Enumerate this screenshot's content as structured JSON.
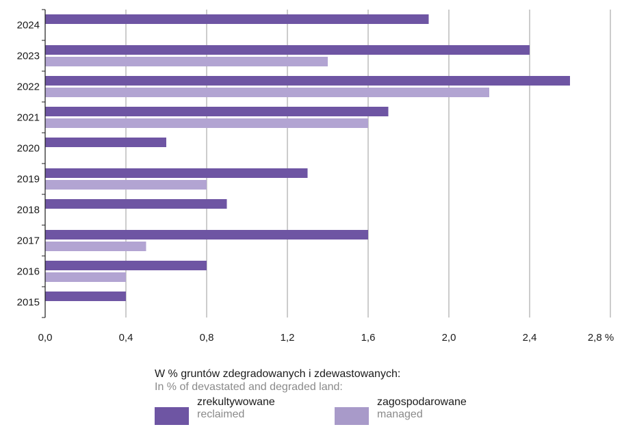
{
  "chart_data": {
    "type": "bar",
    "orientation": "horizontal",
    "categories": [
      "2024",
      "2023",
      "2022",
      "2021",
      "2020",
      "2019",
      "2018",
      "2017",
      "2016",
      "2015"
    ],
    "series": [
      {
        "name": "zrekultywowane",
        "name_en": "reclaimed",
        "color": "#6e55a3",
        "values": [
          1.9,
          2.4,
          2.6,
          1.7,
          0.6,
          1.3,
          0.9,
          1.6,
          0.8,
          0.4
        ]
      },
      {
        "name": "zagospodarowane",
        "name_en": "managed",
        "color": "#b2a4d2",
        "values": [
          null,
          1.4,
          2.2,
          1.6,
          null,
          0.8,
          null,
          0.5,
          0.4,
          null
        ]
      }
    ],
    "x_ticks": [
      "0,0",
      "0,4",
      "0,8",
      "1,2",
      "1,6",
      "2,0",
      "2,4",
      "2,8 %"
    ],
    "xlim": [
      0,
      2.8
    ],
    "grid": "vertical",
    "legend_position": "bottom"
  },
  "legend": {
    "title": "W % gruntów zdegradowanych i zdewastowanych:",
    "subtitle": "In % of devastated and degraded land:"
  },
  "colors": {
    "reclaimed": "#6e55a3",
    "managed": "#b2a4d2",
    "grid": "#9a9a9a",
    "axis": "#1a1a1a"
  }
}
